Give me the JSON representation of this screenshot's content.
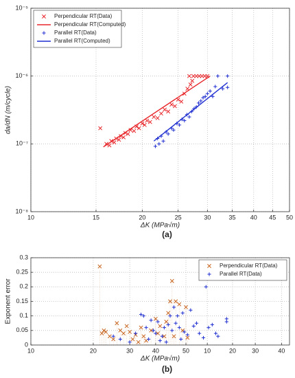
{
  "chart_data": [
    {
      "type": "scatter",
      "panel": "(a)",
      "x_label": "ΔK (MPa√m)",
      "y_label": "da/dN (m/cycle)",
      "xscale": "log",
      "yscale": "log",
      "grid": true,
      "legend": "upper left",
      "xlim": [
        10,
        50
      ],
      "xticks": [
        10,
        15,
        20,
        25,
        30,
        35,
        40,
        45,
        50
      ],
      "ylim": [
        1e-08,
        1e-05
      ],
      "yticks": [
        {
          "value": 1e-08,
          "label": "10⁻⁸"
        },
        {
          "value": 1e-07,
          "label": "10⁻⁷"
        },
        {
          "value": 1e-06,
          "label": "10⁻⁶"
        },
        {
          "value": 1e-05,
          "label": "10⁻⁵"
        }
      ],
      "series": [
        {
          "name": "Perpendicular RT(Data)",
          "color": "#e8262a",
          "mode": "markers",
          "marker": "x",
          "x": [
            15.4,
            16.0,
            16.3,
            16.5,
            16.8,
            17.0,
            17.3,
            17.5,
            17.8,
            18.0,
            18.3,
            18.6,
            19.0,
            19.3,
            19.6,
            20.0,
            20.3,
            20.6,
            21.0,
            21.5,
            22.0,
            22.5,
            23.0,
            23.5,
            24.0,
            24.5,
            25.0,
            25.5,
            26.0,
            26.5,
            27.0,
            27.5,
            28.0,
            28.5,
            29.0,
            29.5,
            30.0,
            26.8,
            27.3
          ],
          "values": [
            1.7e-07,
            1e-07,
            9.5e-08,
            1.1e-07,
            1.05e-07,
            1.2e-07,
            1.15e-07,
            1.3e-07,
            1.25e-07,
            1.45e-07,
            1.4e-07,
            1.6e-07,
            1.55e-07,
            1.8e-07,
            1.7e-07,
            2e-07,
            1.9e-07,
            2.2e-07,
            2.1e-07,
            2.5e-07,
            2.4e-07,
            2.8e-07,
            3.2e-07,
            3e-07,
            3.8e-07,
            3.6e-07,
            4.5e-07,
            4.2e-07,
            5.5e-07,
            6.5e-07,
            7.5e-07,
            1e-06,
            1e-06,
            1e-06,
            1e-06,
            1e-06,
            1e-06,
            1e-06,
            8.5e-07
          ]
        },
        {
          "name": "Perpendicular RT(Computed)",
          "color": "#e8262a",
          "mode": "line",
          "x": [
            15.7,
            30.5
          ],
          "values": [
            9e-08,
            1e-06
          ]
        },
        {
          "name": "Parallel RT(Data)",
          "color": "#1f2fd0",
          "mode": "markers",
          "marker": "+",
          "x": [
            21.7,
            22.0,
            22.2,
            22.5,
            22.8,
            23.2,
            23.5,
            24.0,
            24.3,
            24.8,
            25.2,
            25.6,
            26.0,
            26.4,
            26.8,
            27.2,
            27.6,
            28.0,
            28.4,
            28.8,
            29.2,
            29.6,
            30.0,
            30.5,
            31.0,
            31.5,
            32.0,
            33.0,
            34.0,
            34.0
          ],
          "values": [
            9.2e-08,
            1.2e-07,
            1e-07,
            1.3e-07,
            1.1e-07,
            1.5e-07,
            1.4e-07,
            1.7e-07,
            1.6e-07,
            2e-07,
            1.9e-07,
            2.3e-07,
            2.2e-07,
            2.7e-07,
            2.5e-07,
            3e-07,
            3.3e-07,
            3.5e-07,
            4e-07,
            4.3e-07,
            4.8e-07,
            5e-07,
            5.5e-07,
            6e-07,
            5e-07,
            7e-07,
            1e-06,
            6.5e-07,
            1e-06,
            6.8e-07
          ]
        },
        {
          "name": "Parallel RT(Computed)",
          "color": "#1f2fd0",
          "mode": "line",
          "x": [
            21.5,
            34
          ],
          "values": [
            1.1e-07,
            8e-07
          ]
        }
      ]
    },
    {
      "type": "scatter",
      "panel": "(b)",
      "x_label": "ΔK (MPa√m)",
      "y_label": "Exponent error",
      "xscale": "log",
      "yscale": "linear",
      "grid": true,
      "legend": "upper right",
      "xlim": [
        10,
        177
      ],
      "xticks": [
        10,
        20,
        30,
        40,
        {
          "value": 56,
          "label": "50"
        },
        {
          "value": 71,
          "label": "10"
        },
        {
          "value": 94,
          "label": "20"
        },
        {
          "value": 121,
          "label": "30"
        },
        {
          "value": 162,
          "label": "40"
        }
      ],
      "ylim": [
        0,
        0.3
      ],
      "yticks": [
        0,
        0.05,
        0.1,
        0.15,
        0.2,
        0.25,
        0.3
      ],
      "series": [
        {
          "name": "Perpendicular RT(Data)",
          "color": "#c8641e",
          "mode": "markers",
          "marker": "x",
          "stem": true,
          "x": [
            21.5,
            22,
            22.5,
            23,
            24,
            25,
            26,
            27,
            28,
            29,
            30,
            31,
            32,
            33,
            34,
            35,
            36,
            38,
            40,
            41,
            42,
            44,
            45,
            46,
            47,
            48,
            49,
            50,
            52,
            54,
            56,
            57
          ],
          "values": [
            0.27,
            0.04,
            0.05,
            0.045,
            0.03,
            0.02,
            0.075,
            0.05,
            0.04,
            0.065,
            0.045,
            0.02,
            0.035,
            0.01,
            0.06,
            0.03,
            0.015,
            0.05,
            0.09,
            0.04,
            0.065,
            0.03,
            0.08,
            0.11,
            0.15,
            0.22,
            0.03,
            0.15,
            0.14,
            0.05,
            0.13,
            0.025
          ]
        },
        {
          "name": "Parallel RT(Data)",
          "color": "#1f2fd0",
          "mode": "markers",
          "marker": "+",
          "x": [
            25,
            27,
            30,
            32,
            34,
            35,
            36,
            37,
            38,
            39,
            40,
            41,
            42,
            43,
            44,
            45,
            46,
            47,
            48,
            49,
            50,
            51,
            52,
            53,
            54,
            55,
            57,
            59,
            61,
            63,
            65,
            68,
            70,
            72,
            75,
            78,
            80,
            88,
            88
          ],
          "values": [
            0.03,
            0.02,
            0.01,
            0.04,
            0.105,
            0.1,
            0.06,
            0.02,
            0.085,
            0.05,
            0.04,
            0.08,
            0.015,
            0.03,
            0.06,
            0.01,
            0.07,
            0.1,
            0.05,
            0.13,
            0.075,
            0.1,
            0.06,
            0.02,
            0.11,
            0.045,
            0.035,
            0.12,
            0.065,
            0.075,
            0.04,
            0.025,
            0.2,
            0.06,
            0.07,
            0.04,
            0.03,
            0.09,
            0.08
          ]
        }
      ]
    }
  ]
}
